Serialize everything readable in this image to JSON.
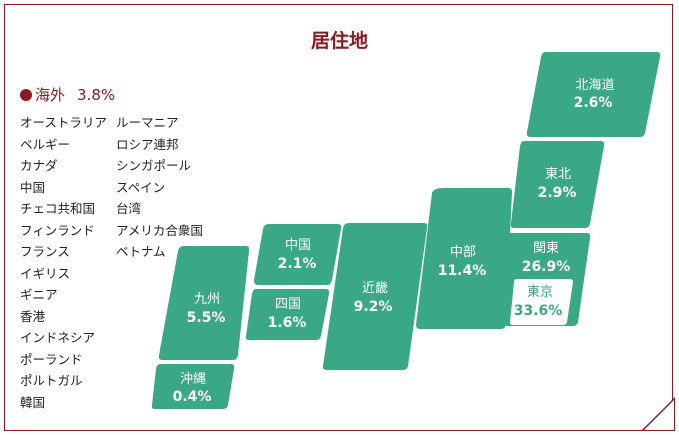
{
  "title": "居住地",
  "overseas": {
    "label": "海外",
    "value": "3.8%",
    "color": "#8b1a22",
    "countries_col1": [
      "オーストラリア",
      "ベルギー",
      "カナダ",
      "中国",
      "チェコ共和国",
      "フィンランド",
      "フランス",
      "イギリス",
      "ギニア",
      "香港",
      "インドネシア",
      "ポーランド",
      "ポルトガル",
      "韓国"
    ],
    "countries_col2": [
      "ルーマニア",
      "ロシア連邦",
      "シンガポール",
      "スペイン",
      "台湾",
      "アメリカ合衆国",
      "ベトナム"
    ]
  },
  "regions": {
    "hokkaido": {
      "name": "北海道",
      "value": "2.6%"
    },
    "tohoku": {
      "name": "東北",
      "value": "2.9%"
    },
    "kanto": {
      "name": "関東",
      "value": "26.9%"
    },
    "tokyo": {
      "name": "東京",
      "value": "33.6%"
    },
    "chubu": {
      "name": "中部",
      "value": "11.4%"
    },
    "kinki": {
      "name": "近畿",
      "value": "9.2%"
    },
    "chugoku": {
      "name": "中国",
      "value": "2.1%"
    },
    "shikoku": {
      "name": "四国",
      "value": "1.6%"
    },
    "kyushu": {
      "name": "九州",
      "value": "5.5%"
    },
    "okinawa": {
      "name": "沖縄",
      "value": "0.4%"
    }
  },
  "colors": {
    "region_fill": "#3aa886",
    "accent": "#8b1a22"
  }
}
